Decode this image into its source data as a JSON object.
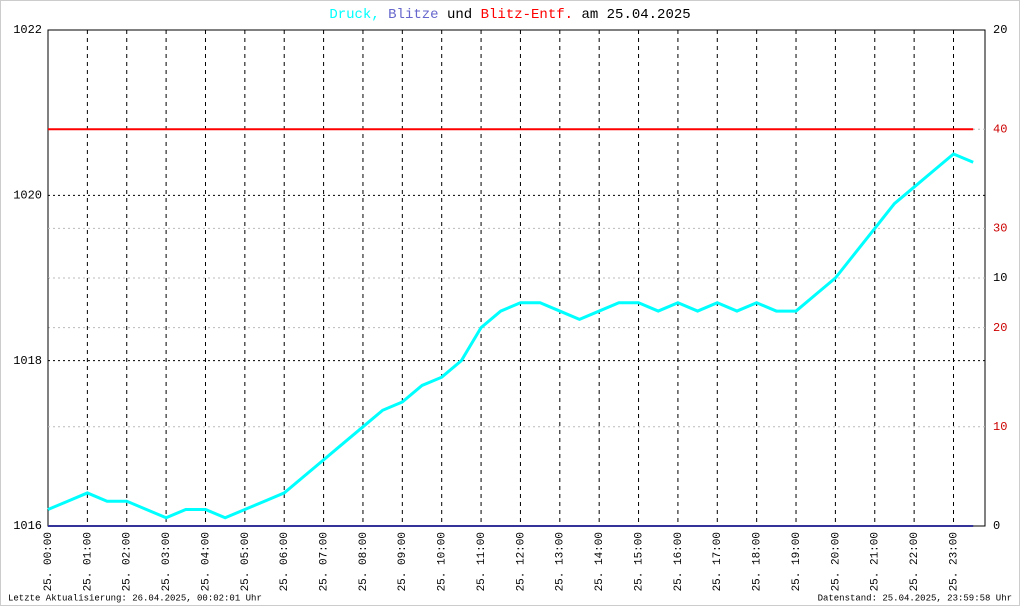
{
  "chart_data": {
    "type": "line",
    "title_parts": [
      {
        "text": "Druck,",
        "color": "#00ffff"
      },
      {
        "text": "Blitze",
        "color": "#6666cc"
      },
      {
        "text": "und",
        "color": "#000000"
      },
      {
        "text": "Blitz-Entf.",
        "color": "#ff0000"
      },
      {
        "text": "am 25.04.2025",
        "color": "#000000"
      }
    ],
    "footer_left": "Letzte Aktualisierung: 26.04.2025, 00:02:01 Uhr",
    "footer_right": "Datenstand: 25.04.2025, 23:59:58 Uhr",
    "x": [
      0,
      0.5,
      1,
      1.5,
      2,
      2.5,
      3,
      3.5,
      4,
      4.5,
      5,
      5.5,
      6,
      6.5,
      7,
      7.5,
      8,
      8.5,
      9,
      9.5,
      10,
      10.5,
      11,
      11.5,
      12,
      12.5,
      13,
      13.5,
      14,
      14.5,
      15,
      15.5,
      16,
      16.5,
      17,
      17.5,
      18,
      18.5,
      19,
      19.5,
      20,
      20.5,
      21,
      21.5,
      22,
      22.5,
      23,
      23.5
    ],
    "xlim": [
      0,
      23.8
    ],
    "xticks": [
      {
        "value": 0,
        "label": "25. 00:00"
      },
      {
        "value": 1,
        "label": "25. 01:00"
      },
      {
        "value": 2,
        "label": "25. 02:00"
      },
      {
        "value": 3,
        "label": "25. 03:00"
      },
      {
        "value": 4,
        "label": "25. 04:00"
      },
      {
        "value": 5,
        "label": "25. 05:00"
      },
      {
        "value": 6,
        "label": "25. 06:00"
      },
      {
        "value": 7,
        "label": "25. 07:00"
      },
      {
        "value": 8,
        "label": "25. 08:00"
      },
      {
        "value": 9,
        "label": "25. 09:00"
      },
      {
        "value": 10,
        "label": "25. 10:00"
      },
      {
        "value": 11,
        "label": "25. 11:00"
      },
      {
        "value": 12,
        "label": "25. 12:00"
      },
      {
        "value": 13,
        "label": "25. 13:00"
      },
      {
        "value": 14,
        "label": "25. 14:00"
      },
      {
        "value": 15,
        "label": "25. 15:00"
      },
      {
        "value": 16,
        "label": "25. 16:00"
      },
      {
        "value": 17,
        "label": "25. 17:00"
      },
      {
        "value": 18,
        "label": "25. 18:00"
      },
      {
        "value": 19,
        "label": "25. 19:00"
      },
      {
        "value": 20,
        "label": "25. 20:00"
      },
      {
        "value": 21,
        "label": "25. 21:00"
      },
      {
        "value": 22,
        "label": "25. 22:00"
      },
      {
        "value": 23,
        "label": "25. 23:00"
      }
    ],
    "ylim": [
      1016,
      1022
    ],
    "yticks": [
      1016,
      1018,
      1020,
      1022
    ],
    "y2lim": [
      0,
      20
    ],
    "y2ticks": [
      0,
      10,
      20
    ],
    "y3lim": [
      0,
      50
    ],
    "y3ticks": [
      10,
      20,
      30,
      40
    ],
    "series": [
      {
        "color": "#00ffff",
        "axis": "y",
        "values": [
          1016.2,
          1016.3,
          1016.4,
          1016.3,
          1016.3,
          1016.2,
          1016.1,
          1016.2,
          1016.2,
          1016.1,
          1016.2,
          1016.3,
          1016.4,
          1016.6,
          1016.8,
          1017.0,
          1017.2,
          1017.4,
          1017.5,
          1017.7,
          1017.8,
          1018.0,
          1018.4,
          1018.6,
          1018.7,
          1018.7,
          1018.6,
          1018.5,
          1018.6,
          1018.7,
          1018.7,
          1018.6,
          1018.7,
          1018.6,
          1018.7,
          1018.6,
          1018.7,
          1018.6,
          1018.6,
          1018.8,
          1019.0,
          1019.3,
          1019.6,
          1019.9,
          1020.1,
          1020.3,
          1020.5,
          1020.4
        ]
      },
      {
        "color": "#333399",
        "axis": "y2",
        "values": [
          0,
          0,
          0,
          0,
          0,
          0,
          0,
          0,
          0,
          0,
          0,
          0,
          0,
          0,
          0,
          0,
          0,
          0,
          0,
          0,
          0,
          0,
          0,
          0,
          0,
          0,
          0,
          0,
          0,
          0,
          0,
          0,
          0,
          0,
          0,
          0,
          0,
          0,
          0,
          0,
          0,
          0,
          0,
          0,
          0,
          0,
          0,
          0
        ]
      },
      {
        "color": "#ff0000",
        "axis": "y3",
        "values": [
          40,
          40,
          40,
          40,
          40,
          40,
          40,
          40,
          40,
          40,
          40,
          40,
          40,
          40,
          40,
          40,
          40,
          40,
          40,
          40,
          40,
          40,
          40,
          40,
          40,
          40,
          40,
          40,
          40,
          40,
          40,
          40,
          40,
          40,
          40,
          40,
          40,
          40,
          40,
          40,
          40,
          40,
          40,
          40,
          40,
          40,
          40,
          40
        ]
      }
    ]
  }
}
